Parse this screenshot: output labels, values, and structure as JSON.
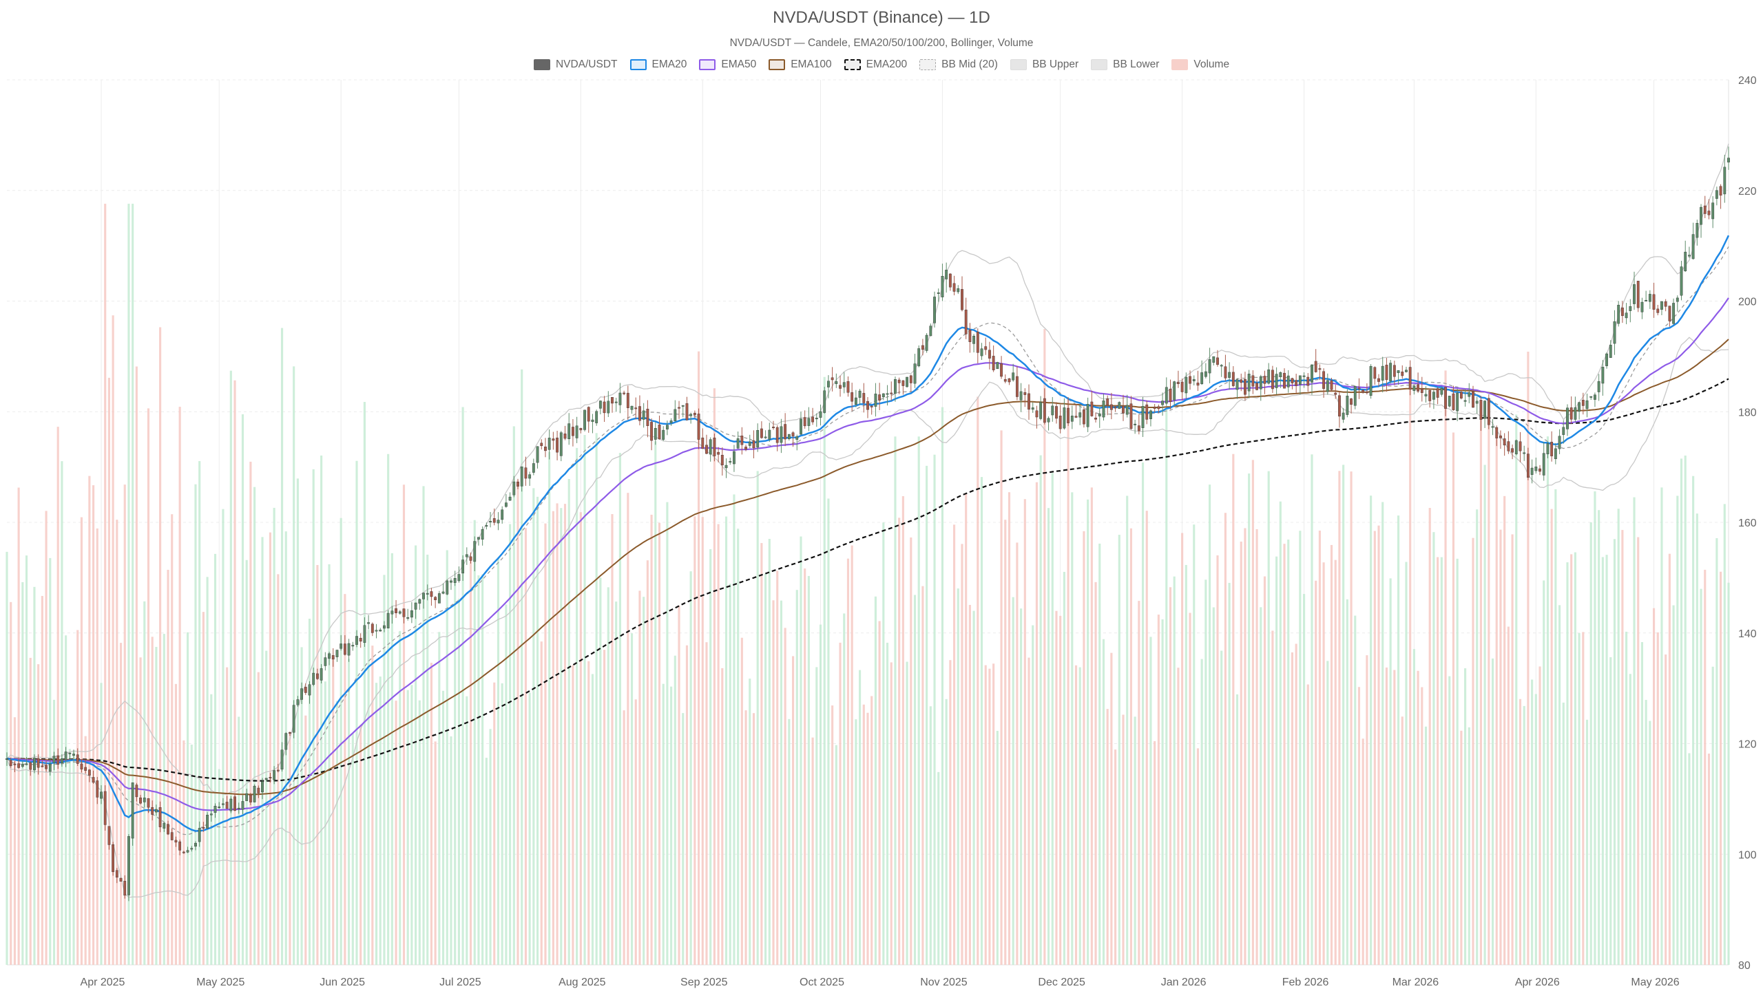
{
  "chart_data": {
    "type": "candlestick",
    "title": "NVDA/USDT (Binance) — 1D",
    "subtitle": "NVDA/USDT — Candele, EMA20/50/100/200, Bollinger, Volume",
    "legend": [
      {
        "label": "NVDA/USDT",
        "kind": "candle",
        "color": "#666666"
      },
      {
        "label": "EMA20",
        "kind": "ema20",
        "color": "#1e88e5"
      },
      {
        "label": "EMA50",
        "kind": "ema50",
        "color": "#8e5be8"
      },
      {
        "label": "EMA100",
        "kind": "ema100",
        "color": "#8b5a2b"
      },
      {
        "label": "EMA200",
        "kind": "ema200",
        "color": "#111111"
      },
      {
        "label": "BB Mid (20)",
        "kind": "bbmid",
        "color": "#9e9e9e"
      },
      {
        "label": "BB Upper",
        "kind": "bbup",
        "color": "#cccccc"
      },
      {
        "label": "BB Lower",
        "kind": "bblow",
        "color": "#cccccc"
      },
      {
        "label": "Volume",
        "kind": "volume",
        "color": "#f7c7c0"
      }
    ],
    "x_labels": [
      "Apr 2025",
      "May 2025",
      "Jun 2025",
      "Jul 2025",
      "Aug 2025",
      "Sep 2025",
      "Oct 2025",
      "Nov 2025",
      "Dec 2025",
      "Jan 2026",
      "Feb 2026",
      "Mar 2026",
      "Apr 2026",
      "May 2026"
    ],
    "x_range": [
      "2025-03-08",
      "2026-05-20"
    ],
    "y_ticks": [
      80,
      100,
      120,
      140,
      160,
      180,
      200,
      220,
      240
    ],
    "ylim": [
      80,
      240
    ],
    "grid": true,
    "legend_position": "top-center",
    "colors": {
      "up": "#5e8c6a",
      "down": "#a85a4a",
      "vol_up": "#c6ebd4",
      "vol_down": "#f6c9c3"
    },
    "price_path": [
      [
        "2025-03-08",
        116
      ],
      [
        "2025-03-18",
        116
      ],
      [
        "2025-03-25",
        119
      ],
      [
        "2025-04-01",
        110
      ],
      [
        "2025-04-04",
        96
      ],
      [
        "2025-04-07",
        93
      ],
      [
        "2025-04-09",
        112
      ],
      [
        "2025-04-15",
        107
      ],
      [
        "2025-04-22",
        100
      ],
      [
        "2025-04-30",
        108
      ],
      [
        "2025-05-08",
        110
      ],
      [
        "2025-05-15",
        114
      ],
      [
        "2025-05-22",
        130
      ],
      [
        "2025-05-28",
        134
      ],
      [
        "2025-06-05",
        139
      ],
      [
        "2025-06-15",
        143
      ],
      [
        "2025-06-25",
        147
      ],
      [
        "2025-07-05",
        155
      ],
      [
        "2025-07-12",
        163
      ],
      [
        "2025-07-20",
        171
      ],
      [
        "2025-07-28",
        176
      ],
      [
        "2025-08-05",
        180
      ],
      [
        "2025-08-12",
        182
      ],
      [
        "2025-08-20",
        176
      ],
      [
        "2025-08-28",
        180
      ],
      [
        "2025-09-05",
        171
      ],
      [
        "2025-09-15",
        175
      ],
      [
        "2025-09-25",
        177
      ],
      [
        "2025-10-05",
        185
      ],
      [
        "2025-10-15",
        182
      ],
      [
        "2025-10-25",
        188
      ],
      [
        "2025-11-01",
        205
      ],
      [
        "2025-11-05",
        200
      ],
      [
        "2025-11-10",
        191
      ],
      [
        "2025-11-18",
        186
      ],
      [
        "2025-11-25",
        180
      ],
      [
        "2025-12-05",
        178
      ],
      [
        "2025-12-12",
        182
      ],
      [
        "2025-12-20",
        178
      ],
      [
        "2025-12-28",
        183
      ],
      [
        "2026-01-08",
        188
      ],
      [
        "2026-01-18",
        185
      ],
      [
        "2026-01-28",
        186
      ],
      [
        "2026-02-05",
        187
      ],
      [
        "2026-02-10",
        180
      ],
      [
        "2026-02-18",
        186
      ],
      [
        "2026-02-25",
        189
      ],
      [
        "2026-03-05",
        182
      ],
      [
        "2026-03-15",
        183
      ],
      [
        "2026-03-25",
        175
      ],
      [
        "2026-04-01",
        168
      ],
      [
        "2026-04-08",
        178
      ],
      [
        "2026-04-15",
        183
      ],
      [
        "2026-04-22",
        199
      ],
      [
        "2026-04-29",
        202
      ],
      [
        "2026-05-05",
        197
      ],
      [
        "2026-05-12",
        214
      ],
      [
        "2026-05-20",
        224
      ]
    ],
    "volume_axis_max": 170
  }
}
